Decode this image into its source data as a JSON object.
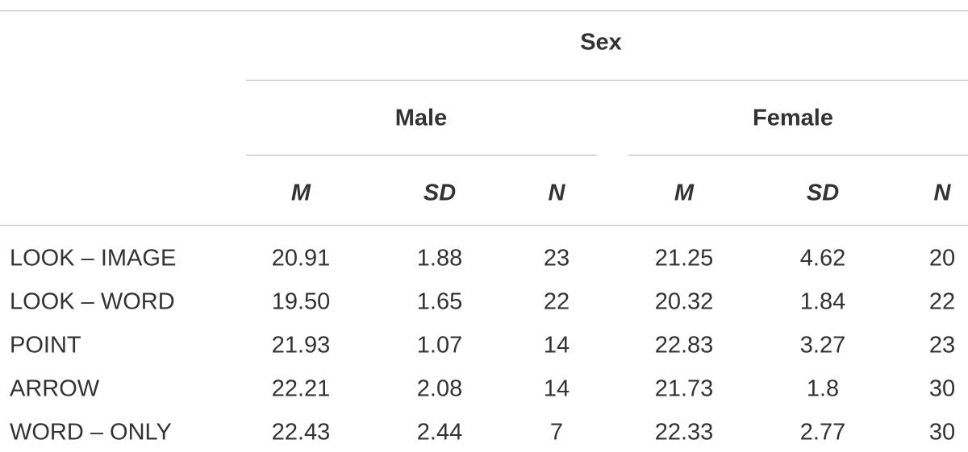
{
  "table": {
    "group": "Sex",
    "subgroups": [
      "Male",
      "Female"
    ],
    "columns": [
      "M",
      "SD",
      "N",
      "M",
      "SD",
      "N"
    ],
    "rows": [
      [
        "LOOK – IMAGE",
        "20.91",
        "1.88",
        "23",
        "21.25",
        "4.62",
        "20"
      ],
      [
        "LOOK – WORD",
        "19.50",
        "1.65",
        "22",
        "20.32",
        "1.84",
        "22"
      ],
      [
        "POINT",
        "21.93",
        "1.07",
        "14",
        "22.83",
        "3.27",
        "23"
      ],
      [
        "ARROW",
        "22.21",
        "2.08",
        "14",
        "21.73",
        "1.8",
        "30"
      ],
      [
        "WORD – ONLY",
        "22.43",
        "2.44",
        "7",
        "22.33",
        "2.77",
        "30"
      ]
    ]
  }
}
